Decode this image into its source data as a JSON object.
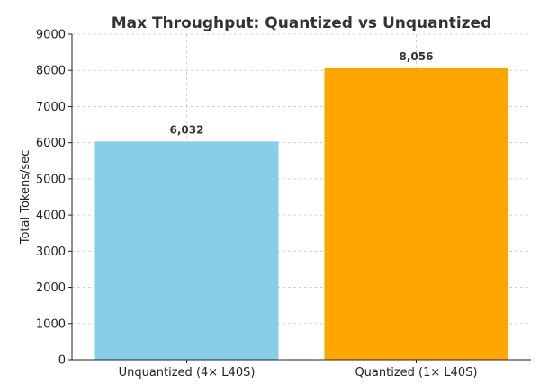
{
  "chart_data": {
    "type": "bar",
    "title": "Max Throughput: Quantized vs Unquantized",
    "xlabel": "",
    "ylabel": "Total Tokens/sec",
    "categories": [
      "Unquantized (4× L40S)",
      "Quantized (1× L40S)"
    ],
    "values": [
      6032,
      8056
    ],
    "value_labels": [
      "6,032",
      "8,056"
    ],
    "colors": [
      "#87CEEB",
      "#FFA500"
    ],
    "ylim": [
      0,
      9000
    ],
    "yticks": [
      0,
      1000,
      2000,
      3000,
      4000,
      5000,
      6000,
      7000,
      8000,
      9000
    ],
    "grid": true
  }
}
